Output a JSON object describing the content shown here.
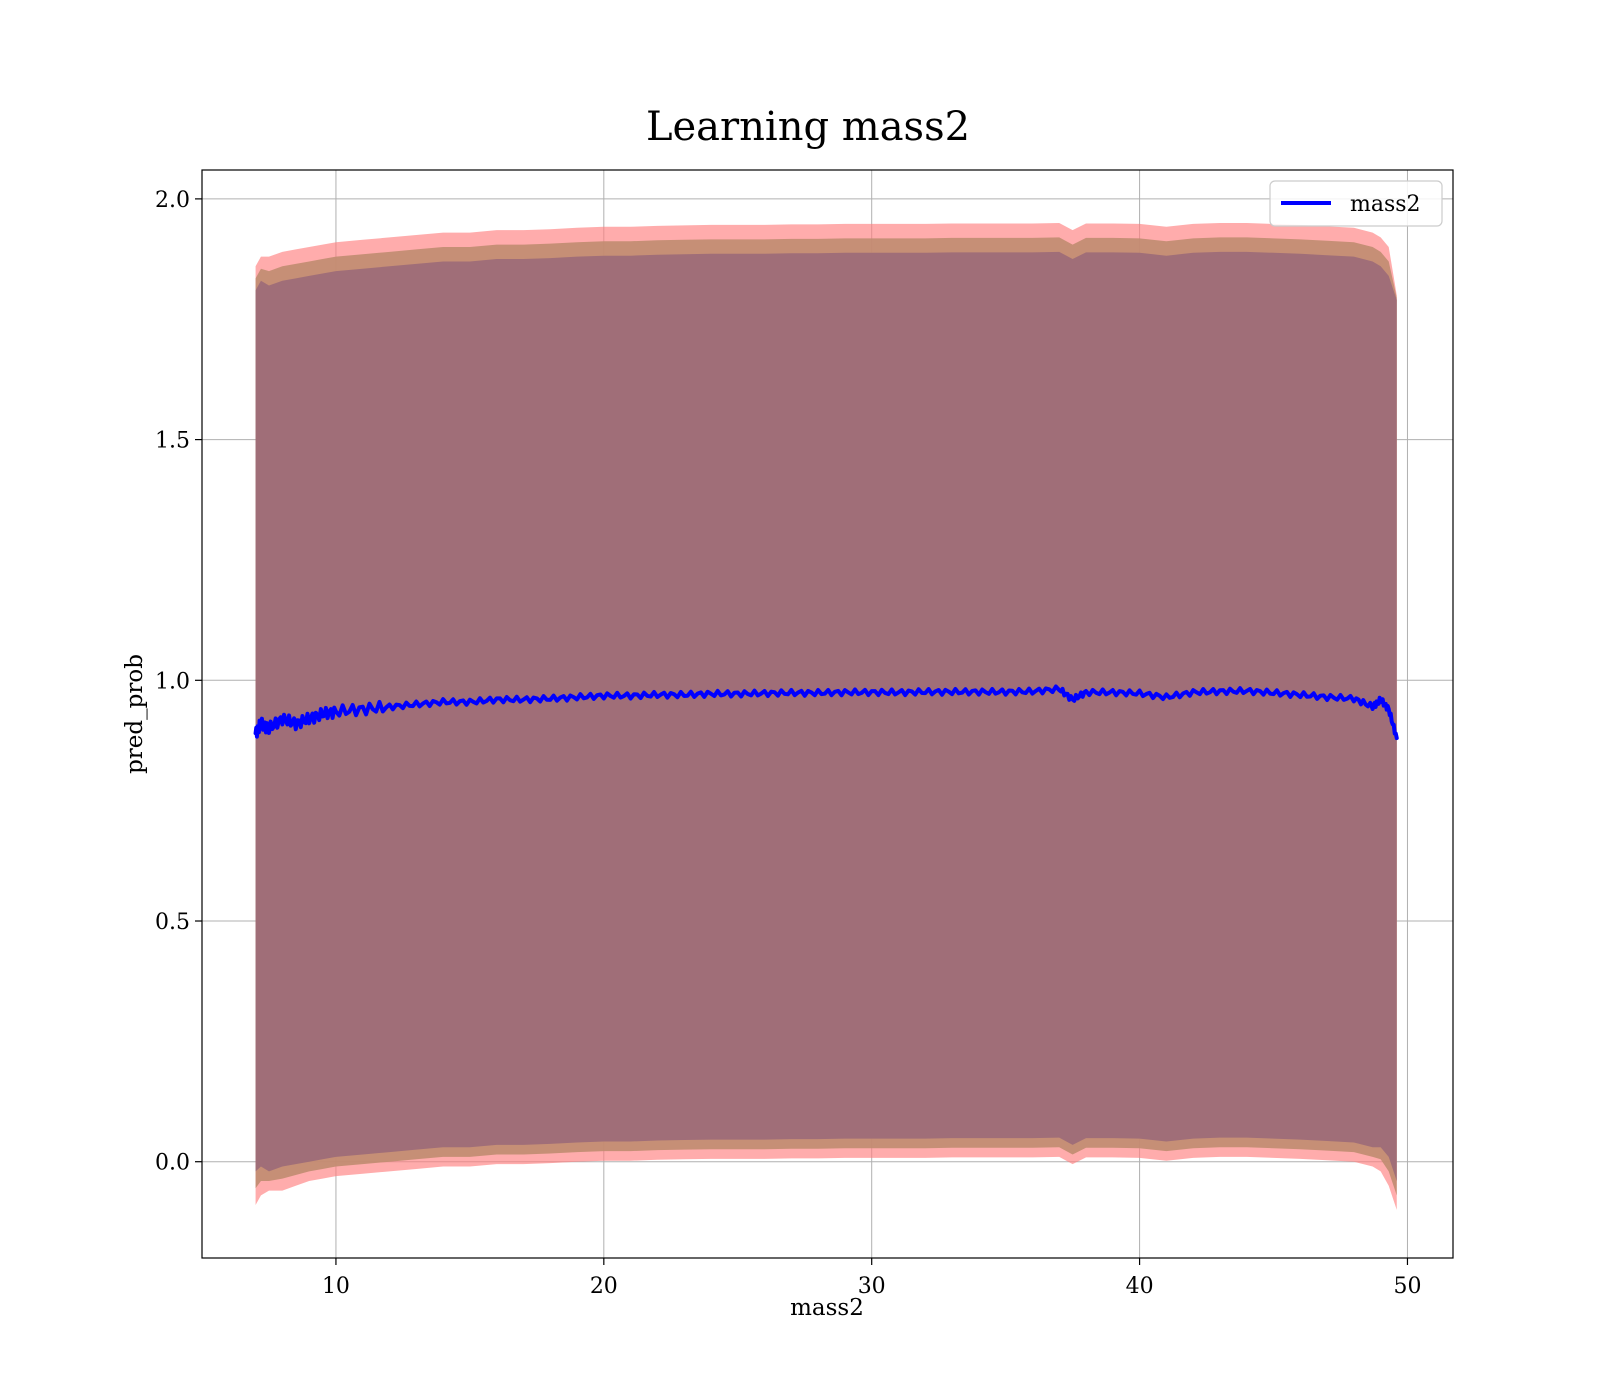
{
  "chart_data": {
    "type": "line",
    "title": "Learning mass2",
    "xlabel": "mass2",
    "ylabel": "pred_prob",
    "xlim": [
      5,
      51.7
    ],
    "ylim": [
      -0.2,
      2.06
    ],
    "grid": true,
    "legend_position": "top-right",
    "x_ticks": [
      10,
      20,
      30,
      40,
      50
    ],
    "x_tick_labels": [
      "10",
      "20",
      "30",
      "40",
      "50"
    ],
    "y_ticks": [
      0.0,
      0.5,
      1.0,
      1.5,
      2.0
    ],
    "y_tick_labels": [
      "0.0",
      "0.5",
      "1.0",
      "1.5",
      "2.0"
    ],
    "colors": {
      "line": "#0000ff",
      "band_outer": "#ff8080",
      "band_inner": "#b48c8c",
      "band_overlap": "#a06e78",
      "grid": "#b0b0b0",
      "frame": "#000000"
    },
    "series": [
      {
        "name": "mass2",
        "x": [
          7.0,
          7.2,
          7.5,
          8.0,
          8.5,
          9.0,
          9.5,
          10.0,
          11.0,
          12.0,
          13.0,
          14.0,
          15.0,
          16.0,
          17.0,
          18.0,
          19.0,
          20.0,
          21.0,
          22.0,
          23.0,
          24.0,
          25.0,
          26.0,
          27.0,
          28.0,
          29.0,
          30.0,
          31.0,
          32.0,
          33.0,
          34.0,
          35.0,
          36.0,
          37.0,
          37.5,
          38.0,
          39.0,
          40.0,
          41.0,
          42.0,
          43.0,
          44.0,
          45.0,
          46.0,
          47.0,
          48.0,
          48.7,
          49.0,
          49.3,
          49.6
        ],
        "values": [
          0.89,
          0.91,
          0.9,
          0.92,
          0.91,
          0.92,
          0.93,
          0.935,
          0.94,
          0.945,
          0.95,
          0.955,
          0.955,
          0.96,
          0.96,
          0.962,
          0.965,
          0.968,
          0.968,
          0.97,
          0.97,
          0.972,
          0.972,
          0.973,
          0.974,
          0.974,
          0.975,
          0.975,
          0.975,
          0.976,
          0.976,
          0.976,
          0.976,
          0.977,
          0.982,
          0.96,
          0.975,
          0.975,
          0.973,
          0.965,
          0.975,
          0.977,
          0.978,
          0.974,
          0.97,
          0.965,
          0.962,
          0.945,
          0.96,
          0.94,
          0.88
        ],
        "lower": [
          -0.02,
          -0.01,
          -0.02,
          -0.01,
          -0.005,
          0.0,
          0.005,
          0.01,
          0.015,
          0.02,
          0.025,
          0.03,
          0.03,
          0.035,
          0.035,
          0.037,
          0.04,
          0.042,
          0.042,
          0.044,
          0.045,
          0.046,
          0.046,
          0.046,
          0.047,
          0.047,
          0.048,
          0.048,
          0.048,
          0.048,
          0.049,
          0.049,
          0.049,
          0.049,
          0.05,
          0.035,
          0.049,
          0.049,
          0.048,
          0.042,
          0.048,
          0.05,
          0.05,
          0.048,
          0.046,
          0.043,
          0.04,
          0.03,
          0.03,
          0.01,
          -0.04
        ],
        "upper": [
          1.81,
          1.83,
          1.82,
          1.83,
          1.835,
          1.84,
          1.845,
          1.85,
          1.855,
          1.86,
          1.865,
          1.87,
          1.87,
          1.875,
          1.875,
          1.877,
          1.88,
          1.882,
          1.882,
          1.884,
          1.885,
          1.886,
          1.886,
          1.886,
          1.887,
          1.887,
          1.888,
          1.888,
          1.888,
          1.888,
          1.889,
          1.889,
          1.889,
          1.889,
          1.89,
          1.875,
          1.889,
          1.889,
          1.888,
          1.882,
          1.888,
          1.89,
          1.89,
          1.888,
          1.886,
          1.883,
          1.88,
          1.87,
          1.86,
          1.84,
          1.79
        ],
        "lower_wide": [
          -0.09,
          -0.07,
          -0.06,
          -0.06,
          -0.05,
          -0.04,
          -0.035,
          -0.03,
          -0.025,
          -0.02,
          -0.015,
          -0.01,
          -0.01,
          -0.005,
          -0.005,
          -0.003,
          0.0,
          0.002,
          0.002,
          0.004,
          0.005,
          0.006,
          0.006,
          0.006,
          0.007,
          0.007,
          0.008,
          0.008,
          0.008,
          0.008,
          0.009,
          0.009,
          0.009,
          0.009,
          0.01,
          -0.005,
          0.009,
          0.009,
          0.008,
          0.002,
          0.008,
          0.01,
          0.01,
          0.008,
          0.006,
          0.003,
          0.0,
          -0.01,
          -0.02,
          -0.05,
          -0.1
        ],
        "upper_wide": [
          1.86,
          1.88,
          1.88,
          1.89,
          1.895,
          1.9,
          1.905,
          1.91,
          1.915,
          1.92,
          1.925,
          1.93,
          1.93,
          1.935,
          1.935,
          1.937,
          1.94,
          1.942,
          1.942,
          1.944,
          1.945,
          1.946,
          1.946,
          1.946,
          1.947,
          1.947,
          1.948,
          1.948,
          1.948,
          1.948,
          1.949,
          1.949,
          1.949,
          1.949,
          1.95,
          1.935,
          1.949,
          1.949,
          1.948,
          1.942,
          1.948,
          1.95,
          1.95,
          1.948,
          1.946,
          1.943,
          1.94,
          1.93,
          1.92,
          1.9,
          1.8
        ]
      }
    ]
  }
}
